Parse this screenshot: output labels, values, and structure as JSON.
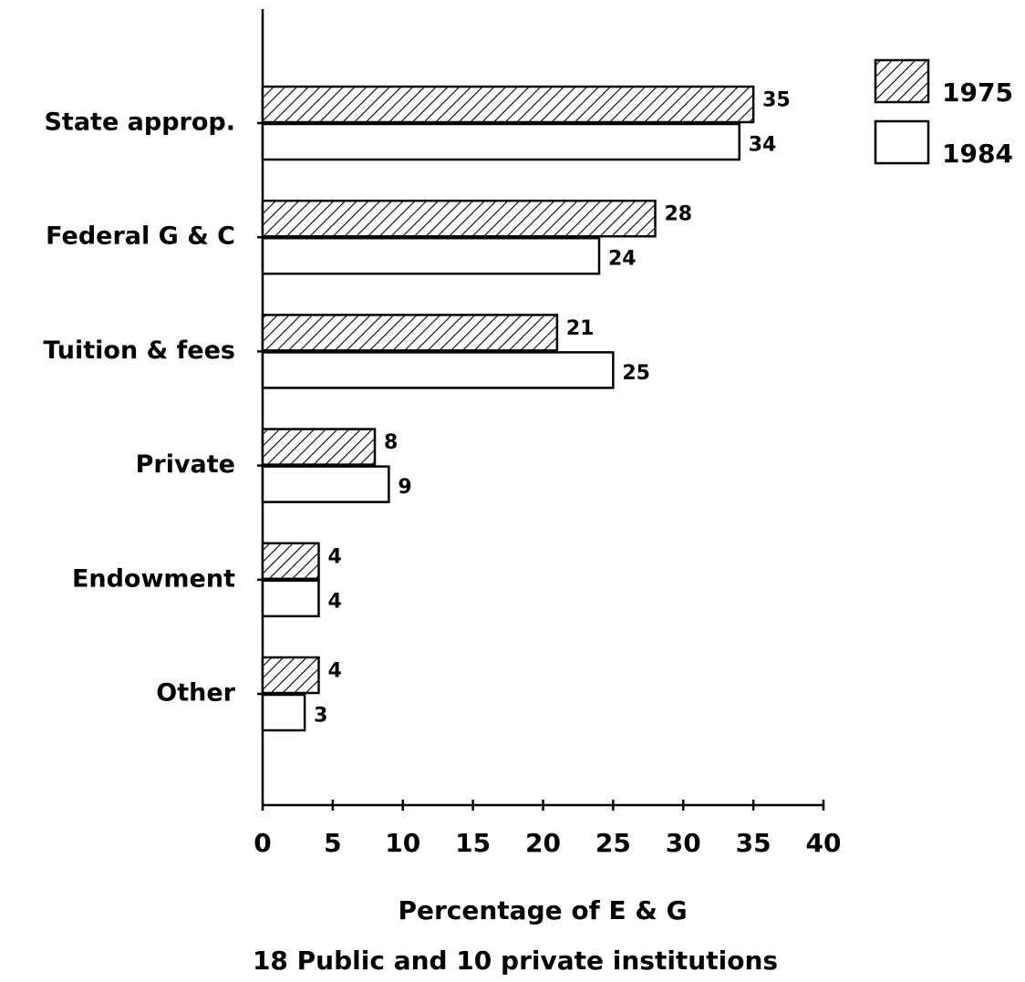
{
  "chart_data": {
    "type": "hbar",
    "categories": [
      "State approp.",
      "Federal G & C",
      "Tuition & fees",
      "Private",
      "Endowment",
      "Other"
    ],
    "series": [
      {
        "name": "1975",
        "color": "#ffffff",
        "pattern": "hatch",
        "values": [
          35,
          28,
          21,
          8,
          4,
          4
        ]
      },
      {
        "name": "1984",
        "color": "#ffffff",
        "values": [
          34,
          24,
          25,
          9,
          4,
          3
        ]
      }
    ],
    "xlim": [
      0,
      40
    ],
    "xticks": [
      0,
      5,
      10,
      15,
      20,
      25,
      30,
      35,
      40
    ],
    "xlabel": "Percentage of E & G",
    "subtitle": "18 Public and 10 private institutions",
    "legend": "upper right"
  }
}
